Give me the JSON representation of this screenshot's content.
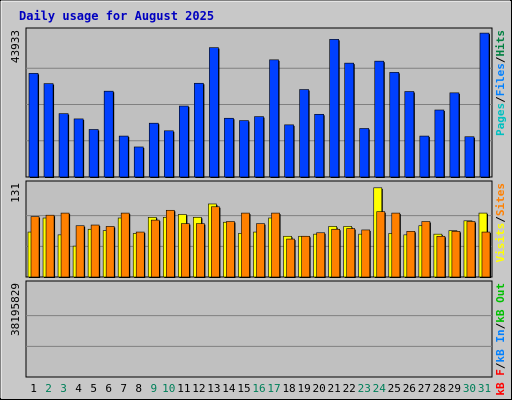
{
  "chart_data": {
    "type": "bar",
    "title": "Daily usage for August 2025",
    "categories": [
      "1",
      "2",
      "3",
      "4",
      "5",
      "6",
      "7",
      "8",
      "9",
      "10",
      "11",
      "12",
      "13",
      "14",
      "15",
      "16",
      "17",
      "18",
      "19",
      "20",
      "21",
      "22",
      "23",
      "24",
      "25",
      "26",
      "27",
      "28",
      "29",
      "30",
      "31"
    ],
    "weekend_days": [
      "2",
      "3",
      "9",
      "10",
      "16",
      "17",
      "23",
      "24",
      "30",
      "31"
    ],
    "panels": [
      {
        "id": "pages",
        "max_label": "43933",
        "ymax": 43933,
        "legend": [
          {
            "label": "Pages",
            "color": "#00c0c0"
          },
          {
            "label": "/",
            "color": "#000000"
          },
          {
            "label": "Files",
            "color": "#0080ff"
          },
          {
            "label": "/",
            "color": "#000000"
          },
          {
            "label": "Hits",
            "color": "#008040"
          }
        ],
        "series": [
          {
            "name": "Hits",
            "color": "#0040ff",
            "values": [
              31400,
              28300,
              19200,
              17600,
              14400,
              26000,
              12400,
              9100,
              16300,
              14000,
              21500,
              28400,
              39200,
              17800,
              17100,
              18300,
              35500,
              15800,
              26500,
              19000,
              41700,
              34500,
              14700,
              35100,
              31700,
              25900,
              12400,
              20300,
              25500,
              12200,
              43600
            ]
          },
          {
            "name": "Files",
            "color": "#0080ff",
            "values": [
              0,
              0,
              0,
              0,
              0,
              0,
              0,
              0,
              0,
              0,
              0,
              0,
              0,
              0,
              0,
              0,
              0,
              0,
              0,
              0,
              0,
              0,
              0,
              0,
              0,
              0,
              0,
              0,
              0,
              0,
              0
            ]
          },
          {
            "name": "Pages",
            "color": "#00c0c0",
            "values": [
              0,
              0,
              0,
              0,
              0,
              0,
              0,
              0,
              0,
              0,
              0,
              0,
              0,
              0,
              0,
              0,
              0,
              0,
              0,
              0,
              0,
              0,
              0,
              0,
              0,
              0,
              0,
              0,
              0,
              0,
              0
            ]
          }
        ]
      },
      {
        "id": "visits",
        "max_label": "131",
        "ymax": 131,
        "legend": [
          {
            "label": "Visits",
            "color": "#ffff00"
          },
          {
            "label": "/",
            "color": "#000000"
          },
          {
            "label": "Sites",
            "color": "#ff8000"
          }
        ],
        "series": [
          {
            "name": "Visits",
            "color": "#ffff00",
            "values": [
              64,
              84,
              60,
              44,
              68,
              66,
              84,
              62,
              85,
              85,
              89,
              85,
              104,
              78,
              62,
              64,
              84,
              58,
              58,
              61,
              72,
              72,
              61,
              127,
              62,
              60,
              73,
              61,
              66,
              80,
              91
            ]
          },
          {
            "name": "Sites",
            "color": "#ff8000",
            "values": [
              86,
              88,
              91,
              73,
              74,
              72,
              91,
              64,
              81,
              95,
              76,
              76,
              100,
              79,
              91,
              76,
              91,
              54,
              58,
              63,
              68,
              69,
              67,
              93,
              91,
              65,
              79,
              58,
              65,
              79,
              64
            ]
          }
        ]
      },
      {
        "id": "kbytes",
        "max_label": "38195829",
        "ymax": 38195829,
        "legend": [
          {
            "label": "kB F",
            "color": "#ff0000"
          },
          {
            "label": "/",
            "color": "#000000"
          },
          {
            "label": "kB In",
            "color": "#0080ff"
          },
          {
            "label": "/",
            "color": "#000000"
          },
          {
            "label": "kB Out",
            "color": "#00c000"
          }
        ],
        "series": [
          {
            "name": "kB F",
            "color": "#ff0000",
            "values": [
              27100,
              25000,
              17100,
              11600,
              11100,
              24300,
              6400,
              5400,
              10300,
              8300,
              14200,
              20900,
              38000,
              12500,
              10600,
              14600,
              37600,
              10400,
              19900,
              15000,
              35000,
              29600,
              30500,
              33200,
              29600,
              27600,
              21400,
              8700,
              13300,
              22400,
              38200
            ]
          }
        ]
      }
    ]
  }
}
